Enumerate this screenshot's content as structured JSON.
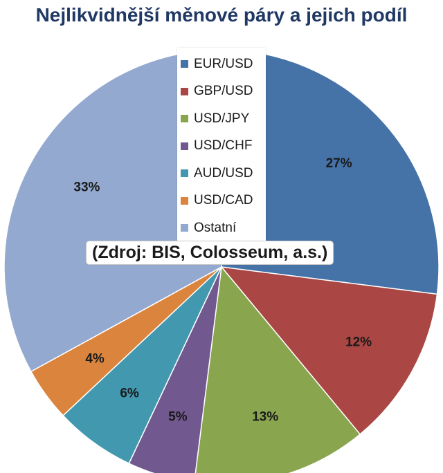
{
  "chart_data": {
    "type": "pie",
    "title": "Nejlikvidnější měnové páry a jejich podíl",
    "annotation": "(Zdroj: BIS, Colosseum, a.s.)",
    "legend_position": "center-top",
    "slices": [
      {
        "name": "EUR/USD",
        "value": 27,
        "label": "27%",
        "color": "#4572a7"
      },
      {
        "name": "GBP/USD",
        "value": 12,
        "label": "12%",
        "color": "#aa4643"
      },
      {
        "name": "USD/JPY",
        "value": 13,
        "label": "13%",
        "color": "#89a54e"
      },
      {
        "name": "USD/CHF",
        "value": 5,
        "label": "5%",
        "color": "#71588f"
      },
      {
        "name": "AUD/USD",
        "value": 6,
        "label": "6%",
        "color": "#4198af"
      },
      {
        "name": "USD/CAD",
        "value": 4,
        "label": "4%",
        "color": "#db843d"
      },
      {
        "name": "Ostatní",
        "value": 33,
        "label": "33%",
        "color": "#93a9cf"
      }
    ]
  }
}
